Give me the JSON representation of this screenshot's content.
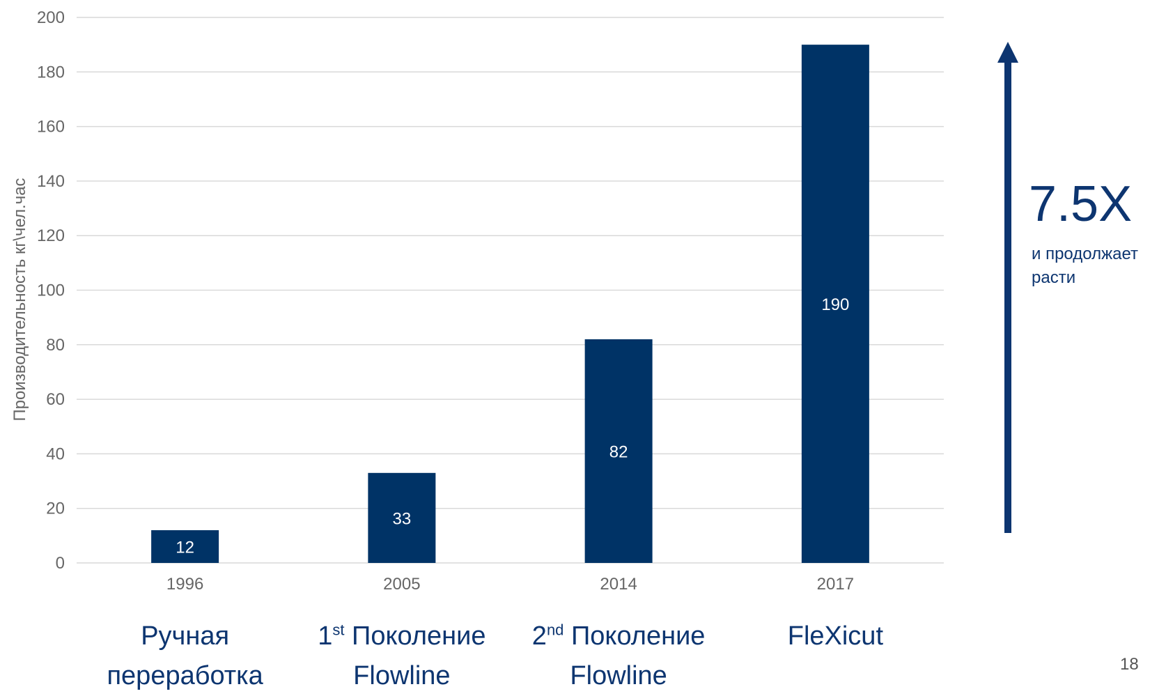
{
  "chart_data": {
    "type": "bar",
    "categories": [
      "1996",
      "2005",
      "2014",
      "2017"
    ],
    "values": [
      12,
      33,
      82,
      190
    ],
    "data_labels": [
      "12",
      "33",
      "82",
      "190"
    ],
    "ylabel": "Производительность кг\\чел.час",
    "ylim": [
      0,
      200
    ],
    "yticks": [
      "0",
      "20",
      "40",
      "60",
      "80",
      "100",
      "120",
      "140",
      "160",
      "180",
      "200"
    ],
    "grid": "horizontal",
    "bar_color": "#003366"
  },
  "captions": [
    {
      "pre": "",
      "sup": "",
      "line1": "Ручная",
      "line2": "переработка"
    },
    {
      "pre": "1",
      "sup": "st",
      "line1": " Поколение",
      "line2": "Flowline"
    },
    {
      "pre": "2",
      "sup": "nd",
      "line1": " Поколение",
      "line2": "Flowline"
    },
    {
      "pre": "",
      "sup": "",
      "line1": "FleXicut",
      "line2": ""
    }
  ],
  "growth": {
    "value": "7.5X",
    "note": "и продолжает расти",
    "arrow_color": "#0d3570",
    "arrow_icon": "arrow-up-icon"
  },
  "page": {
    "number": "18"
  },
  "colors": {
    "text_accent": "#0d3570",
    "bar": "#003366",
    "grid": "#d9d9d9"
  }
}
